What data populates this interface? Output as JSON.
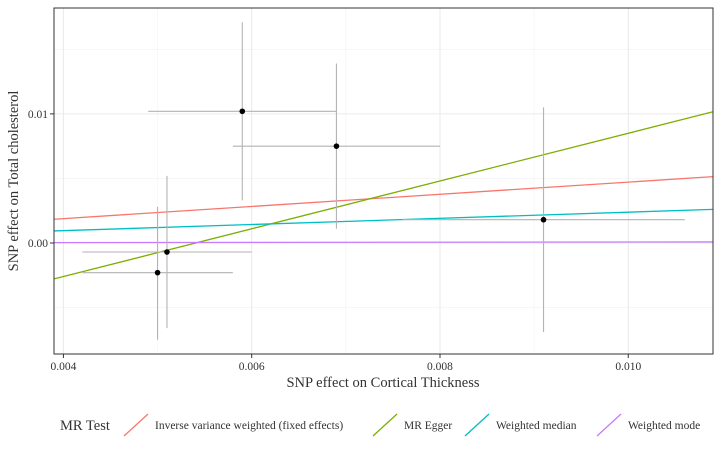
{
  "chart_data": {
    "type": "scatter",
    "xlabel": "SNP effect on Cortical Thickness",
    "ylabel": "SNP effect on Total cholesterol",
    "xlim": [
      0.0039,
      0.0109
    ],
    "ylim": [
      -0.0086,
      0.0182
    ],
    "x_ticks": [
      {
        "value": 0.004,
        "label": "0.004"
      },
      {
        "value": 0.006,
        "label": "0.006"
      },
      {
        "value": 0.008,
        "label": "0.008"
      },
      {
        "value": 0.01,
        "label": "0.010"
      }
    ],
    "y_ticks": [
      {
        "value": 0.0,
        "label": "0.00"
      },
      {
        "value": 0.01,
        "label": "0.01"
      }
    ],
    "grid": true,
    "points": [
      {
        "x": 0.0059,
        "y": 0.0102,
        "xmin": 0.0049,
        "xmax": 0.0069,
        "ymin": 0.0033,
        "ymax": 0.0171
      },
      {
        "x": 0.0069,
        "y": 0.0075,
        "xmin": 0.0058,
        "xmax": 0.008,
        "ymin": 0.0011,
        "ymax": 0.0139
      },
      {
        "x": 0.0091,
        "y": 0.0018,
        "xmin": 0.0076,
        "xmax": 0.0106,
        "ymin": -0.0069,
        "ymax": 0.0105
      },
      {
        "x": 0.0051,
        "y": -0.0007,
        "xmin": 0.0042,
        "xmax": 0.006,
        "ymin": -0.0066,
        "ymax": 0.0052
      },
      {
        "x": 0.005,
        "y": -0.0023,
        "xmin": 0.0042,
        "xmax": 0.0058,
        "ymin": -0.0075,
        "ymax": 0.0028
      }
    ],
    "lines": [
      {
        "name": "Inverse variance weighted (fixed effects)",
        "color": "#F8766D",
        "intercept": 0.0,
        "slope": 0.4714
      },
      {
        "name": "MR Egger",
        "color": "#7CAE00",
        "intercept": -0.01,
        "slope": 1.85
      },
      {
        "name": "Weighted median",
        "color": "#00BFC4",
        "intercept": 0.0,
        "slope": 0.2385
      },
      {
        "name": "Weighted mode",
        "color": "#C77CFF",
        "intercept": 0.0,
        "slope": 0.0073
      }
    ],
    "legend": {
      "title": "MR Test",
      "position": "bottom"
    }
  }
}
